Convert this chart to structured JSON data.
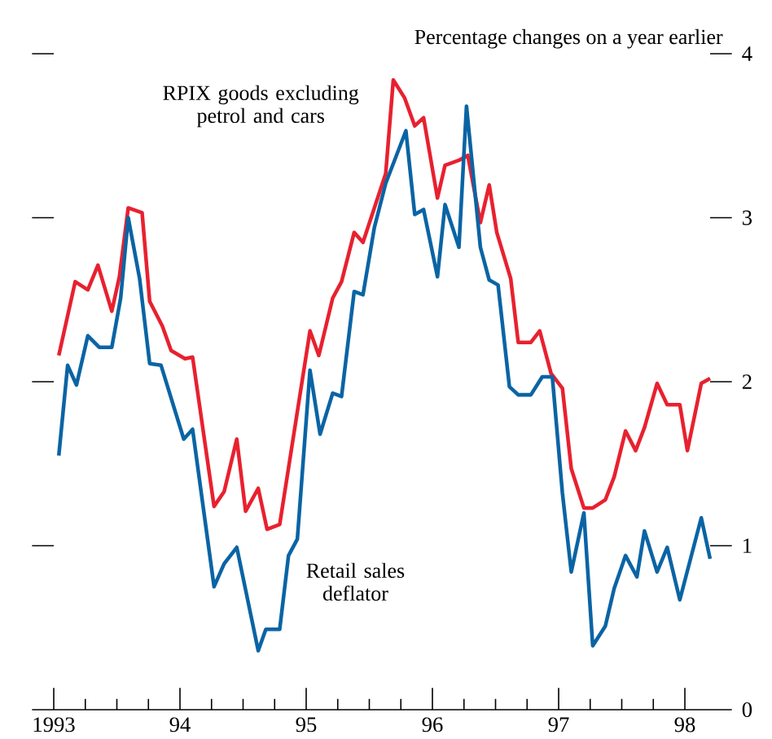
{
  "chart_data": {
    "type": "line",
    "ylabel": "Percentage changes on a year earlier",
    "xlim": [
      1993,
      1998.2
    ],
    "ylim": [
      0,
      4
    ],
    "xticks": [
      {
        "value": 1993,
        "label": "1993"
      },
      {
        "value": 1993.25,
        "label": null
      },
      {
        "value": 1993.5,
        "label": null
      },
      {
        "value": 1993.75,
        "label": null
      },
      {
        "value": 1994,
        "label": "94"
      },
      {
        "value": 1994.25,
        "label": null
      },
      {
        "value": 1994.5,
        "label": null
      },
      {
        "value": 1994.75,
        "label": null
      },
      {
        "value": 1995,
        "label": "95"
      },
      {
        "value": 1995.25,
        "label": null
      },
      {
        "value": 1995.5,
        "label": null
      },
      {
        "value": 1995.75,
        "label": null
      },
      {
        "value": 1996,
        "label": "96"
      },
      {
        "value": 1996.25,
        "label": null
      },
      {
        "value": 1996.5,
        "label": null
      },
      {
        "value": 1996.75,
        "label": null
      },
      {
        "value": 1997,
        "label": "97"
      },
      {
        "value": 1997.25,
        "label": null
      },
      {
        "value": 1997.5,
        "label": null
      },
      {
        "value": 1997.75,
        "label": null
      },
      {
        "value": 1998,
        "label": "98"
      }
    ],
    "yticks": [
      0,
      1,
      2,
      3,
      4
    ],
    "grid": false,
    "legend": false,
    "marker": "none",
    "line_style": "solid",
    "series": [
      {
        "name": "RPIX goods excluding petrol and cars",
        "color": "#e8212f",
        "x": [
          1993.04,
          1993.17,
          1993.27,
          1993.35,
          1993.46,
          1993.52,
          1993.59,
          1993.7,
          1993.76,
          1993.86,
          1993.93,
          1994.04,
          1994.1,
          1994.27,
          1994.35,
          1994.45,
          1994.52,
          1994.62,
          1994.69,
          1994.79,
          1995.03,
          1995.1,
          1995.21,
          1995.28,
          1995.38,
          1995.45,
          1995.63,
          1995.69,
          1995.78,
          1995.86,
          1995.93,
          1996.04,
          1996.1,
          1996.21,
          1996.28,
          1996.38,
          1996.45,
          1996.51,
          1996.62,
          1996.68,
          1996.78,
          1996.85,
          1996.94,
          1997.03,
          1997.1,
          1997.2,
          1997.27,
          1997.37,
          1997.44,
          1997.53,
          1997.61,
          1997.68,
          1997.78,
          1997.86,
          1997.96,
          1998.02,
          1998.13,
          1998.2
        ],
        "values": [
          2.16,
          2.61,
          2.56,
          2.71,
          2.43,
          2.64,
          3.06,
          3.03,
          2.49,
          2.34,
          2.19,
          2.14,
          2.15,
          1.24,
          1.33,
          1.65,
          1.21,
          1.35,
          1.1,
          1.13,
          2.31,
          2.16,
          2.51,
          2.61,
          2.91,
          2.85,
          3.27,
          3.84,
          3.73,
          3.56,
          3.61,
          3.12,
          3.32,
          3.35,
          3.38,
          2.97,
          3.2,
          2.91,
          2.63,
          2.24,
          2.24,
          2.31,
          2.05,
          1.96,
          1.47,
          1.23,
          1.23,
          1.28,
          1.42,
          1.7,
          1.58,
          1.72,
          1.99,
          1.86,
          1.86,
          1.58,
          1.99,
          2.02
        ]
      },
      {
        "name": "Retail sales deflator",
        "color": "#0a64a4",
        "x": [
          1993.04,
          1993.11,
          1993.18,
          1993.27,
          1993.36,
          1993.46,
          1993.53,
          1993.59,
          1993.68,
          1993.76,
          1993.85,
          1994.03,
          1994.1,
          1994.27,
          1994.35,
          1994.45,
          1994.62,
          1994.68,
          1994.79,
          1994.86,
          1994.93,
          1995.03,
          1995.11,
          1995.21,
          1995.28,
          1995.38,
          1995.45,
          1995.54,
          1995.63,
          1995.79,
          1995.86,
          1995.93,
          1996.04,
          1996.1,
          1996.21,
          1996.27,
          1996.38,
          1996.45,
          1996.52,
          1996.61,
          1996.68,
          1996.78,
          1996.87,
          1996.95,
          1997.03,
          1997.1,
          1997.2,
          1997.27,
          1997.37,
          1997.44,
          1997.53,
          1997.62,
          1997.68,
          1997.78,
          1997.86,
          1997.96,
          1998.13,
          1998.2
        ],
        "values": [
          1.55,
          2.1,
          1.98,
          2.28,
          2.21,
          2.21,
          2.51,
          3.0,
          2.63,
          2.11,
          2.1,
          1.65,
          1.71,
          0.75,
          0.89,
          0.99,
          0.36,
          0.49,
          0.49,
          0.94,
          1.04,
          2.07,
          1.68,
          1.93,
          1.91,
          2.55,
          2.53,
          2.94,
          3.21,
          3.53,
          3.02,
          3.05,
          2.64,
          3.08,
          2.82,
          3.68,
          2.82,
          2.62,
          2.59,
          1.97,
          1.92,
          1.92,
          2.03,
          2.03,
          1.32,
          0.84,
          1.2,
          0.39,
          0.51,
          0.74,
          0.94,
          0.81,
          1.09,
          0.84,
          0.99,
          0.67,
          1.17,
          0.92
        ]
      }
    ]
  }
}
